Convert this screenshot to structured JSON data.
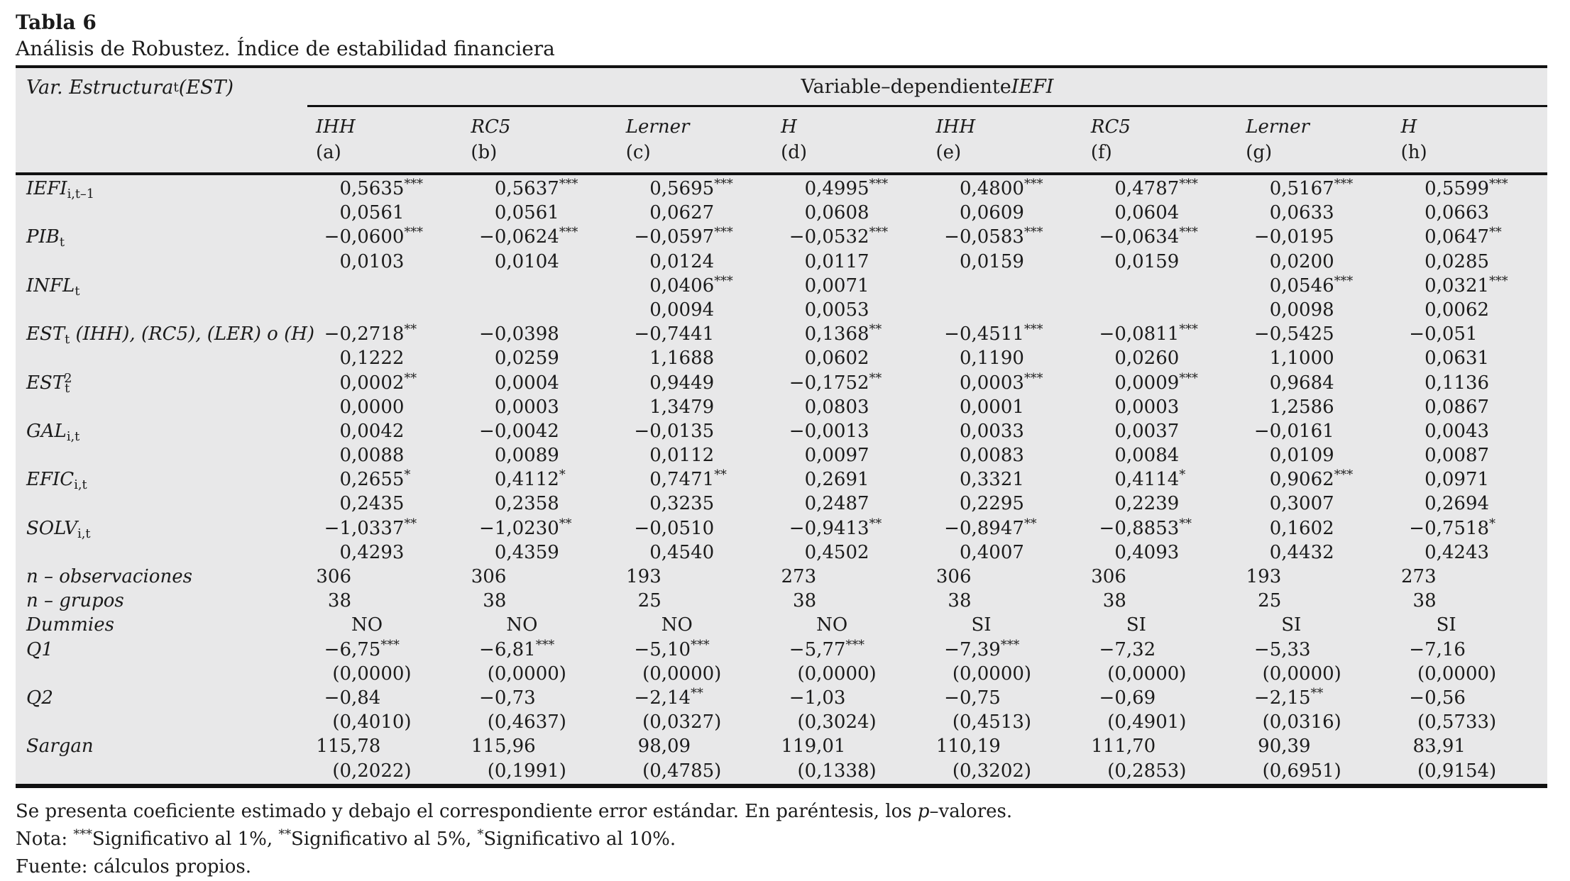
{
  "colors": {
    "table_bg": "#e8e8e9",
    "rule": "#111111",
    "text": "#1b1b1b"
  },
  "title": {
    "label": "Tabla 6",
    "subtitle": "Análisis de Robustez. Índice de estabilidad financiera"
  },
  "table": {
    "stub_header": {
      "main": "Var. Estructura",
      "sub": "t",
      "rest": " (EST)"
    },
    "span_header": {
      "text": "Variable–dependiente ",
      "em": "IEFI"
    },
    "columns": [
      {
        "name": "IHH",
        "tag": "(a)"
      },
      {
        "name": "RC5",
        "tag": "(b)"
      },
      {
        "name": "Lerner",
        "tag": "(c)"
      },
      {
        "name": "H",
        "tag": "(d)"
      },
      {
        "name": "IHH",
        "tag": "(e)"
      },
      {
        "name": "RC5",
        "tag": "(f)"
      },
      {
        "name": "Lerner",
        "tag": "(g)"
      },
      {
        "name": "H",
        "tag": "(h)"
      }
    ],
    "rows": [
      {
        "label": {
          "main": "IEFI",
          "sub": "i,t–1"
        },
        "cells": [
          [
            "0,5635***",
            "0,0561"
          ],
          [
            "0,5637***",
            "0,0561"
          ],
          [
            "0,5695***",
            "0,0627"
          ],
          [
            "0,4995***",
            "0,0608"
          ],
          [
            "0,4800***",
            "0,0609"
          ],
          [
            "0,4787***",
            "0,0604"
          ],
          [
            "0,5167***",
            "0,0633"
          ],
          [
            "0,5599***",
            "0,0663"
          ]
        ]
      },
      {
        "label": {
          "main": "PIB",
          "sub": "t"
        },
        "cells": [
          [
            "−0,0600***",
            "0,0103"
          ],
          [
            "−0,0624***",
            "0,0104"
          ],
          [
            "−0,0597***",
            "0,0124"
          ],
          [
            "−0,0532***",
            "0,0117"
          ],
          [
            "−0,0583***",
            "0,0159"
          ],
          [
            "−0,0634***",
            "0,0159"
          ],
          [
            "−0,0195",
            "0,0200"
          ],
          [
            "0,0647**",
            "0,0285"
          ]
        ]
      },
      {
        "label": {
          "main": "INFL",
          "sub": "t"
        },
        "cells": [
          [
            "",
            ""
          ],
          [
            "",
            ""
          ],
          [
            "0,0406***",
            "0,0094"
          ],
          [
            "0,0071",
            "0,0053"
          ],
          [
            "",
            ""
          ],
          [
            "",
            ""
          ],
          [
            "0,0546***",
            "0,0098"
          ],
          [
            "0,0321***",
            "0,0062"
          ]
        ]
      },
      {
        "label": {
          "main": "EST",
          "sub": "t",
          "rest": " (IHH), (RC5), (LER) o (H)"
        },
        "cells": [
          [
            "−0,2718**",
            "0,1222"
          ],
          [
            "−0,0398",
            "0,0259"
          ],
          [
            "−0,7441",
            "1,1688"
          ],
          [
            "0,1368**",
            "0,0602"
          ],
          [
            "−0,4511***",
            "0,1190"
          ],
          [
            "−0,0811***",
            "0,0260"
          ],
          [
            "−0,5425",
            "1,1000"
          ],
          [
            "−0,051",
            "0,0631"
          ]
        ]
      },
      {
        "label": {
          "main": "EST",
          "sub": "t",
          "sup": "2"
        },
        "cells": [
          [
            "0,0002**",
            "0,0000"
          ],
          [
            "0,0004",
            "0,0003"
          ],
          [
            "0,9449",
            "1,3479"
          ],
          [
            "−0,1752**",
            "0,0803"
          ],
          [
            "0,0003***",
            "0,0001"
          ],
          [
            "0,0009***",
            "0,0003"
          ],
          [
            "0,9684",
            "1,2586"
          ],
          [
            "0,1136",
            "0,0867"
          ]
        ]
      },
      {
        "label": {
          "main": "GAL",
          "sub": "i,t"
        },
        "cells": [
          [
            "0,0042",
            "0,0088"
          ],
          [
            "−0,0042",
            "0,0089"
          ],
          [
            "−0,0135",
            "0,0112"
          ],
          [
            "−0,0013",
            "0,0097"
          ],
          [
            "0,0033",
            "0,0083"
          ],
          [
            "0,0037",
            "0,0084"
          ],
          [
            "−0,0161",
            "0,0109"
          ],
          [
            "0,0043",
            "0,0087"
          ]
        ]
      },
      {
        "label": {
          "main": "EFIC",
          "sub": "i,t"
        },
        "cells": [
          [
            "0,2655*",
            "0,2435"
          ],
          [
            "0,4112*",
            "0,2358"
          ],
          [
            "0,7471**",
            "0,3235"
          ],
          [
            "0,2691",
            "0,2487"
          ],
          [
            "0,3321",
            "0,2295"
          ],
          [
            "0,4114*",
            "0,2239"
          ],
          [
            "0,9062***",
            "0,3007"
          ],
          [
            "0,0971",
            "0,2694"
          ]
        ]
      },
      {
        "label": {
          "main": "SOLV",
          "sub": "i,t"
        },
        "cells": [
          [
            "−1,0337**",
            "0,4293"
          ],
          [
            "−1,0230**",
            "0,4359"
          ],
          [
            "−0,0510",
            "0,4540"
          ],
          [
            "−0,9413**",
            "0,4502"
          ],
          [
            "−0,8947**",
            "0,4007"
          ],
          [
            "−0,8853**",
            "0,4093"
          ],
          [
            "0,1602",
            "0,4432"
          ],
          [
            "−0,7518*",
            "0,4243"
          ]
        ]
      },
      {
        "label": {
          "main": "n – observaciones"
        },
        "cells": [
          [
            "306"
          ],
          [
            "306"
          ],
          [
            "193"
          ],
          [
            "273"
          ],
          [
            "306"
          ],
          [
            "306"
          ],
          [
            "193"
          ],
          [
            "273"
          ]
        ]
      },
      {
        "label": {
          "main": "n – grupos"
        },
        "cells": [
          [
            "38"
          ],
          [
            "38"
          ],
          [
            "25"
          ],
          [
            "38"
          ],
          [
            "38"
          ],
          [
            "38"
          ],
          [
            "25"
          ],
          [
            "38"
          ]
        ]
      },
      {
        "label": {
          "main": "Dummies"
        },
        "cells": [
          [
            "NO"
          ],
          [
            "NO"
          ],
          [
            "NO"
          ],
          [
            "NO"
          ],
          [
            "SI"
          ],
          [
            "SI"
          ],
          [
            "SI"
          ],
          [
            "SI"
          ]
        ]
      },
      {
        "label": {
          "main": "Q1"
        },
        "cells": [
          [
            "−6,75***",
            "(0,0000)"
          ],
          [
            "−6,81***",
            "(0,0000)"
          ],
          [
            "−5,10***",
            "(0,0000)"
          ],
          [
            "−5,77***",
            "(0,0000)"
          ],
          [
            "−7,39***",
            "(0,0000)"
          ],
          [
            "−7,32",
            "(0,0000)"
          ],
          [
            "−5,33",
            "(0,0000)"
          ],
          [
            "−7,16",
            "(0,0000)"
          ]
        ]
      },
      {
        "label": {
          "main": "Q2"
        },
        "cells": [
          [
            "−0,84",
            "(0,4010)"
          ],
          [
            "−0,73",
            "(0,4637)"
          ],
          [
            "−2,14**",
            "(0,0327)"
          ],
          [
            "−1,03",
            "(0,3024)"
          ],
          [
            "−0,75",
            "(0,4513)"
          ],
          [
            "−0,69",
            "(0,4901)"
          ],
          [
            "−2,15**",
            "(0,0316)"
          ],
          [
            "−0,56",
            "(0,5733)"
          ]
        ]
      },
      {
        "label": {
          "main": "Sargan"
        },
        "cells": [
          [
            "115,78",
            "(0,2022)"
          ],
          [
            "115,96",
            "(0,1991)"
          ],
          [
            "98,09",
            "(0,4785)"
          ],
          [
            "119,01",
            "(0,1338)"
          ],
          [
            "110,19",
            "(0,3202)"
          ],
          [
            "111,70",
            "(0,2853)"
          ],
          [
            "90,39",
            "(0,6951)"
          ],
          [
            "83,91",
            "(0,9154)"
          ]
        ]
      }
    ]
  },
  "notes": [
    [
      {
        "t": "Se presenta coeficiente estimado y debajo el correspondiente error estándar. En paréntesis, los "
      },
      {
        "t": "p",
        "style": "i"
      },
      {
        "t": "–valores."
      }
    ],
    [
      {
        "t": "Nota: "
      },
      {
        "t": "***",
        "style": "sup"
      },
      {
        "t": "Significativo al 1%, "
      },
      {
        "t": "**",
        "style": "sup"
      },
      {
        "t": "Significativo al 5%, "
      },
      {
        "t": "*",
        "style": "sup"
      },
      {
        "t": "Significativo al 10%."
      }
    ],
    [
      {
        "t": "Fuente: cálculos propios."
      }
    ]
  ]
}
